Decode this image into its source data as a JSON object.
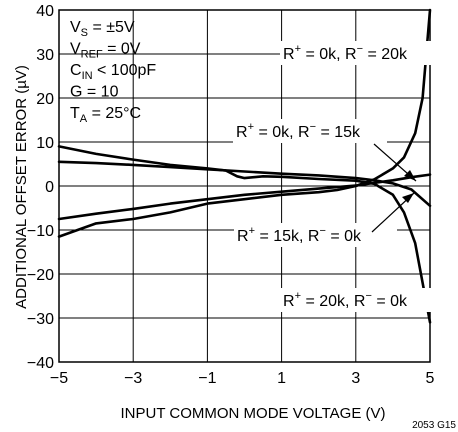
{
  "chart_data": {
    "type": "line",
    "xlabel": "INPUT COMMON MODE VOLTAGE (V)",
    "ylabel": "ADDITIONAL OFFSET ERROR (µV)",
    "xlim": [
      -5,
      5
    ],
    "ylim": [
      -40,
      40
    ],
    "x_ticks": [
      "−5",
      "−3",
      "−1",
      "1",
      "3",
      "5"
    ],
    "y_ticks": [
      "40",
      "30",
      "20",
      "10",
      "0",
      "−10",
      "−20",
      "−30",
      "−40"
    ],
    "grid": true,
    "figure_code": "2053 G15",
    "conditions": [
      {
        "main": "V",
        "sub": "S",
        "rest": " = ±5V"
      },
      {
        "main": "V",
        "sub": "REF",
        "rest": " = 0V"
      },
      {
        "main": "C",
        "sub": "IN",
        "rest": " < 100pF"
      },
      {
        "main": "G = 10",
        "sub": "",
        "rest": ""
      },
      {
        "main": "T",
        "sub": "A",
        "rest": " = 25°C"
      }
    ],
    "series": [
      {
        "label": {
          "r1": "R",
          "s1": "+",
          "v1": " = 0k, R",
          "s2": "−",
          "v2": " = 20k"
        },
        "x": [
          -5,
          -4,
          -3,
          -2,
          -1,
          0,
          1,
          2,
          2.5,
          3,
          3.5,
          4,
          4.3,
          4.6,
          4.8,
          5
        ],
        "y": [
          -11.5,
          -8.5,
          -7.5,
          -6,
          -4,
          -3,
          -2,
          -1.4,
          -0.9,
          0,
          1.5,
          4,
          6.5,
          12,
          20,
          40
        ]
      },
      {
        "label": {
          "r1": "R",
          "s1": "+",
          "v1": " = 0k, R",
          "s2": "−",
          "v2": " = 15k"
        },
        "x": [
          -5,
          -4,
          -3,
          -2,
          -1,
          0,
          1,
          2,
          3,
          3.5,
          4,
          4.5,
          5
        ],
        "y": [
          -7.5,
          -6.3,
          -5.2,
          -4,
          -3,
          -2,
          -1.3,
          -0.6,
          0.1,
          0.7,
          1.3,
          2,
          2.6
        ]
      },
      {
        "label": {
          "r1": "R",
          "s1": "+",
          "v1": " = 15k, R",
          "s2": "−",
          "v2": " = 0k"
        },
        "x": [
          -5,
          -4,
          -3,
          -2,
          -1,
          0,
          1,
          2,
          3,
          3.5,
          4,
          4.5,
          5
        ],
        "y": [
          5.5,
          5.2,
          4.8,
          4.3,
          3.8,
          3.3,
          2.8,
          2.4,
          1.8,
          1.3,
          0.6,
          -0.8,
          -4.5
        ]
      },
      {
        "label": {
          "r1": "R",
          "s1": "+",
          "v1": " = 20k, R",
          "s2": "−",
          "v2": " = 0k"
        },
        "x": [
          -5,
          -4,
          -3,
          -2,
          -1,
          -0.5,
          -0.2,
          0,
          0.5,
          1,
          2,
          3,
          3.5,
          4,
          4.3,
          4.6,
          4.8,
          5
        ],
        "y": [
          9,
          7.3,
          6,
          4.8,
          4,
          3.5,
          2.2,
          1.8,
          2.2,
          2.1,
          1.6,
          1.2,
          0.5,
          -2,
          -6,
          -13,
          -22,
          -31
        ]
      }
    ]
  }
}
